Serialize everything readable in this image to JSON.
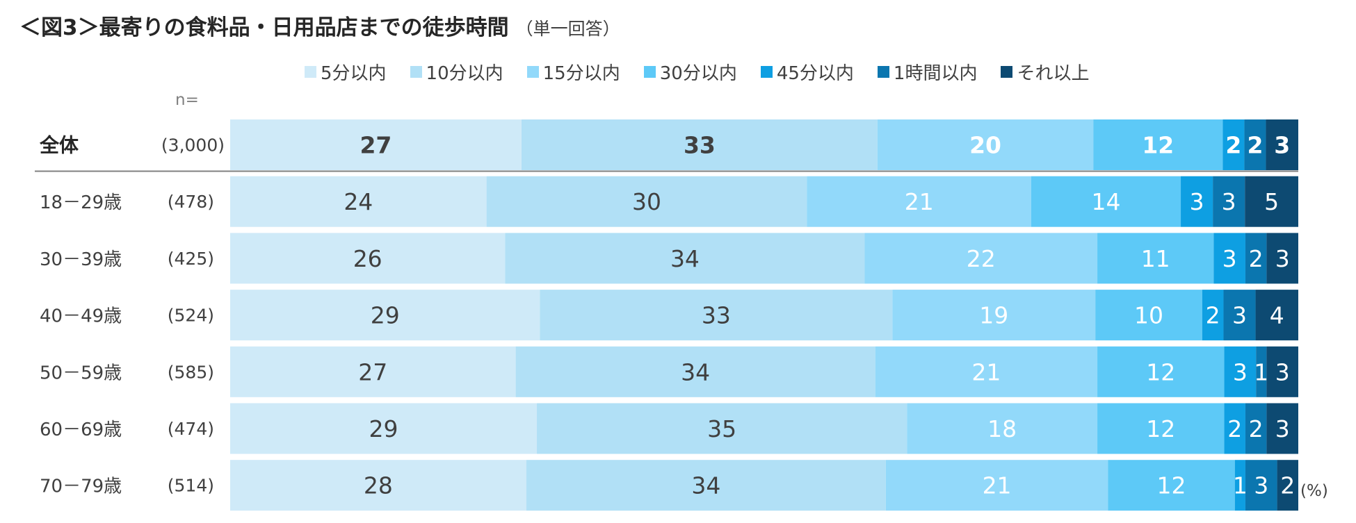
{
  "title": "＜図3＞最寄りの食料品・日用品店までの徒歩時間",
  "subtitle": "（単一回答）",
  "n_label": "n=",
  "unit_label": "(%)",
  "chart_data": {
    "type": "bar",
    "orientation": "horizontal",
    "stacked": "100%",
    "legend_position": "top",
    "series": [
      {
        "name": "5分以内",
        "color": "#cfeaf8"
      },
      {
        "name": "10分以内",
        "color": "#b1e0f6"
      },
      {
        "name": "15分以内",
        "color": "#92d9fa"
      },
      {
        "name": "30分以内",
        "color": "#5dc9f7"
      },
      {
        "name": "45分以内",
        "color": "#0e9fe2"
      },
      {
        "name": "1時間以内",
        "color": "#0b76af"
      },
      {
        "name": "それ以上",
        "color": "#0d4a72"
      }
    ],
    "categories": [
      {
        "label": "全体",
        "n": "(3,000)",
        "values": [
          27,
          33,
          20,
          12,
          2,
          2,
          3
        ],
        "total": true
      },
      {
        "label": "18－29歳",
        "n": "(478)",
        "values": [
          24,
          30,
          21,
          14,
          3,
          3,
          5
        ]
      },
      {
        "label": "30－39歳",
        "n": "(425)",
        "values": [
          26,
          34,
          22,
          11,
          3,
          2,
          3
        ]
      },
      {
        "label": "40－49歳",
        "n": "(524)",
        "values": [
          29,
          33,
          19,
          10,
          2,
          3,
          4
        ]
      },
      {
        "label": "50－59歳",
        "n": "(585)",
        "values": [
          27,
          34,
          21,
          12,
          3,
          1,
          3
        ]
      },
      {
        "label": "60－69歳",
        "n": "(474)",
        "values": [
          29,
          35,
          18,
          12,
          2,
          2,
          3
        ]
      },
      {
        "label": "70－79歳",
        "n": "(514)",
        "values": [
          28,
          34,
          21,
          12,
          1,
          3,
          2
        ]
      }
    ]
  }
}
